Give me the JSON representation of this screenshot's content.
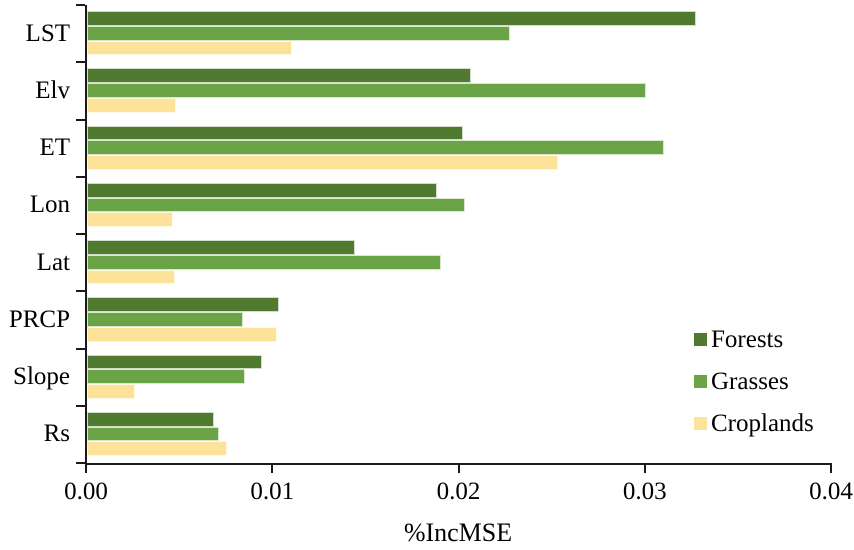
{
  "chart_data": {
    "type": "bar",
    "orientation": "horizontal",
    "title": "",
    "xlabel": "%IncMSE",
    "ylabel": "",
    "xlim": [
      0,
      0.04
    ],
    "xticks": [
      0,
      0.01,
      0.02,
      0.03,
      0.04
    ],
    "xtick_labels": [
      "0.00",
      "0.01",
      "0.02",
      "0.03",
      "0.04"
    ],
    "grid": false,
    "legend_position": "right-middle",
    "categories": [
      "LST",
      "Elv",
      "ET",
      "Lon",
      "Lat",
      "PRCP",
      "Slope",
      "Rs"
    ],
    "series": [
      {
        "name": "Forests",
        "color": "#4f7a30",
        "values": [
          0.0327,
          0.0206,
          0.0202,
          0.0188,
          0.0144,
          0.0103,
          0.0094,
          0.0068
        ]
      },
      {
        "name": "Grasses",
        "color": "#6ba447",
        "values": [
          0.0227,
          0.03,
          0.031,
          0.0203,
          0.019,
          0.0084,
          0.0085,
          0.0071
        ]
      },
      {
        "name": "Croplands",
        "color": "#fde399",
        "values": [
          0.011,
          0.0048,
          0.0253,
          0.0046,
          0.0047,
          0.0102,
          0.0026,
          0.0075
        ]
      }
    ],
    "axis_color": "#1a1a1a"
  }
}
